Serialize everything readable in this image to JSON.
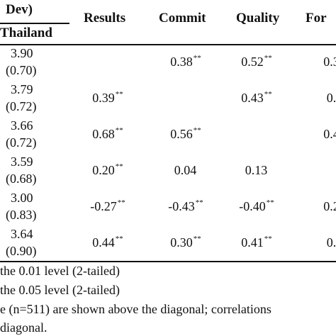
{
  "header": {
    "top_left": "Dev)",
    "sub_left": "Thailand",
    "columns": [
      "Results",
      "Commit",
      "Quality",
      "For"
    ]
  },
  "rows": [
    {
      "mean": "3.90",
      "sd": "(0.70)",
      "cells": [
        {
          "v": "",
          "s": ""
        },
        {
          "v": "0.38",
          "s": "**"
        },
        {
          "v": "0.52",
          "s": "**"
        },
        {
          "v": "0.3",
          "s": ""
        }
      ]
    },
    {
      "mean": "3.79",
      "sd": "(0.72)",
      "cells": [
        {
          "v": "0.39",
          "s": "**"
        },
        {
          "v": "",
          "s": ""
        },
        {
          "v": "0.43",
          "s": "**"
        },
        {
          "v": "0.",
          "s": ""
        }
      ]
    },
    {
      "mean": "3.66",
      "sd": "(0.72)",
      "cells": [
        {
          "v": "0.68",
          "s": "**"
        },
        {
          "v": "0.56",
          "s": "**"
        },
        {
          "v": "",
          "s": ""
        },
        {
          "v": "0.4",
          "s": ""
        }
      ]
    },
    {
      "mean": "3.59",
      "sd": "(0.68)",
      "cells": [
        {
          "v": "0.20",
          "s": "**"
        },
        {
          "v": "0.04",
          "s": ""
        },
        {
          "v": "0.13",
          "s": ""
        },
        {
          "v": "",
          "s": ""
        }
      ]
    },
    {
      "mean": "3.00",
      "sd": "(0.83)",
      "cells": [
        {
          "v": "-0.27",
          "s": "**"
        },
        {
          "v": "-0.43",
          "s": "**"
        },
        {
          "v": "-0.40",
          "s": "**"
        },
        {
          "v": "0.2",
          "s": ""
        }
      ]
    },
    {
      "mean": "3.64",
      "sd": "(0.90)",
      "cells": [
        {
          "v": "0.44",
          "s": "**"
        },
        {
          "v": "0.30",
          "s": "**"
        },
        {
          "v": "0.41",
          "s": "**"
        },
        {
          "v": "0.",
          "s": ""
        }
      ]
    }
  ],
  "notes": [
    "the 0.01 level (2-tailed)",
    "the 0.05 level (2-tailed)",
    "e (n=511) are shown above the diagonal; correlations",
    "diagonal."
  ]
}
